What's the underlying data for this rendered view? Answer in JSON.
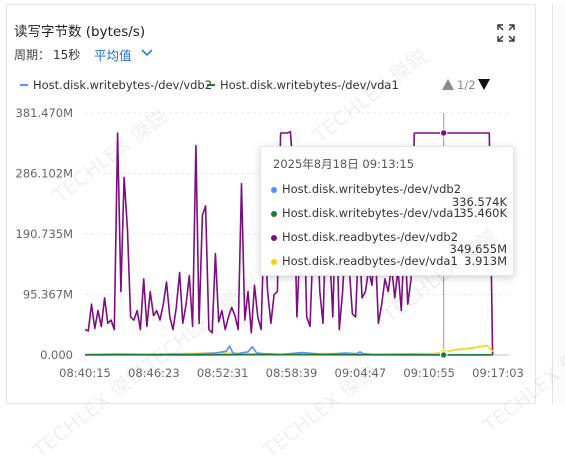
{
  "panel": {
    "title": "读写字节数 (bytes/s)",
    "period_label": "周期：",
    "period_value": "15秒",
    "aggregation_label": "平均值",
    "pager_text": "1/2"
  },
  "icons": {
    "expand": "expand-icon",
    "chevron": "chevron-down-icon",
    "pager_prev": "triangle-up-icon",
    "pager_next": "triangle-down-icon"
  },
  "legend": [
    {
      "name": "Host.disk.writebytes-/dev/vdb2",
      "color": "#5b8ff9"
    },
    {
      "name": "Host.disk.writebytes-/dev/vda1",
      "color": "#1e7a2e"
    }
  ],
  "tooltip": {
    "time": "2025年8月18日 09:13:15",
    "rows": [
      {
        "name": "Host.disk.writebytes-/dev/vdb2",
        "value": "336.574K",
        "color": "#5b8ff9"
      },
      {
        "name": "Host.disk.writebytes-/dev/vda1",
        "value": "35.460K",
        "color": "#1e7a2e"
      },
      {
        "name": "Host.disk.readbytes-/dev/vdb2",
        "value": "349.655M",
        "color": "#7b0f82"
      },
      {
        "name": "Host.disk.readbytes-/dev/vda1",
        "value": "3.913M",
        "color": "#f2d50c"
      }
    ]
  },
  "watermark": "TECHLEX 傑鋭",
  "chart_data": {
    "type": "line",
    "ytick_labels": [
      "0.000",
      "95.367M",
      "190.735M",
      "286.102M",
      "381.470M"
    ],
    "yticks": [
      0,
      95.367,
      190.735,
      286.102,
      381.47
    ],
    "ylim": [
      0,
      381.47
    ],
    "xtick_labels": [
      "08:40:15",
      "08:46:23",
      "08:52:31",
      "08:58:39",
      "09:04:47",
      "09:10:55",
      "09:17:03"
    ],
    "x_range_minutes": [
      0,
      38
    ],
    "cursor_x_minutes": 33,
    "series": [
      {
        "name": "Host.disk.readbytes-/dev/vdb2",
        "color": "#7b0f82",
        "x": [
          0.0,
          0.3,
          0.6,
          0.9,
          1.2,
          1.5,
          1.8,
          2.1,
          2.4,
          2.7,
          3.0,
          3.3,
          3.6,
          3.9,
          4.2,
          4.5,
          4.8,
          5.1,
          5.4,
          5.7,
          6.0,
          6.3,
          6.6,
          6.9,
          7.2,
          7.5,
          7.8,
          8.1,
          8.4,
          8.7,
          9.0,
          9.3,
          9.6,
          9.9,
          10.2,
          10.5,
          10.8,
          11.1,
          11.4,
          11.7,
          12.0,
          12.3,
          12.6,
          12.9,
          13.2,
          13.5,
          13.8,
          14.1,
          14.4,
          14.7,
          15.0,
          15.3,
          15.6,
          15.9,
          16.2,
          16.5,
          16.8,
          17.1,
          17.4,
          17.7,
          18.0,
          18.3,
          18.6,
          18.9,
          19.2,
          19.5,
          19.8,
          20.1,
          20.4,
          20.7,
          21.0,
          21.3,
          21.6,
          21.9,
          22.2,
          22.5,
          22.8,
          23.1,
          23.4,
          23.7,
          24.0,
          24.3,
          24.6,
          24.9,
          25.2,
          25.5,
          25.8,
          26.1,
          26.4,
          26.7,
          27.0,
          27.3,
          27.6,
          27.9,
          28.2,
          28.5,
          28.8,
          29.1,
          29.4,
          29.7,
          30.0,
          30.3,
          30.6,
          30.9,
          31.2,
          31.5,
          31.8,
          32.1,
          32.4,
          32.7,
          33.0,
          33.3,
          33.6,
          33.9,
          34.2,
          34.5,
          34.8,
          35.1,
          35.4,
          35.7,
          36.0,
          36.3,
          36.6,
          36.9,
          37.2,
          37.5
        ],
        "values": [
          40,
          38,
          80,
          42,
          70,
          45,
          90,
          50,
          55,
          40,
          350,
          100,
          280,
          200,
          60,
          55,
          70,
          40,
          120,
          45,
          100,
          62,
          70,
          55,
          80,
          115,
          60,
          40,
          75,
          130,
          50,
          80,
          125,
          45,
          330,
          50,
          220,
          235,
          40,
          35,
          160,
          52,
          70,
          40,
          60,
          75,
          62,
          40,
          270,
          55,
          100,
          35,
          110,
          60,
          40,
          210,
          100,
          50,
          95,
          100,
          350,
          350,
          350,
          352,
          280,
          60,
          180,
          265,
          60,
          45,
          180,
          240,
          100,
          50,
          230,
          170,
          60,
          250,
          40,
          100,
          190,
          140,
          65,
          60,
          190,
          90,
          100,
          135,
          110,
          170,
          50,
          80,
          120,
          100,
          140,
          90,
          135,
          70,
          190,
          80,
          120,
          350,
          350,
          350,
          350,
          350,
          350,
          350,
          350,
          350,
          350,
          350,
          350,
          350,
          350,
          350,
          350,
          350,
          350,
          350,
          350,
          350,
          350,
          350,
          350,
          0
        ]
      },
      {
        "name": "Host.disk.readbytes-/dev/vda1",
        "color": "#f2d50c",
        "x": [
          0,
          3,
          6,
          9,
          12,
          15,
          18,
          21,
          24,
          27,
          30,
          32,
          33,
          34,
          35,
          36,
          37,
          37.5,
          37.6
        ],
        "values": [
          1,
          2,
          1,
          2,
          3,
          2,
          1,
          2,
          2,
          1,
          2,
          2,
          4,
          8,
          10,
          12,
          15,
          6,
          6
        ]
      },
      {
        "name": "Host.disk.writebytes-/dev/vdb2",
        "color": "#5b8ff9",
        "x": [
          0,
          4,
          8,
          10,
          12,
          13,
          13.3,
          13.6,
          14,
          15,
          15.4,
          15.8,
          16.5,
          18,
          20,
          22,
          24,
          25,
          25.3,
          25.6,
          26.5,
          28,
          30,
          33,
          34,
          36,
          37.5
        ],
        "values": [
          0.5,
          1,
          1,
          1.5,
          3,
          6,
          14,
          3,
          2,
          5,
          13,
          3,
          2,
          1,
          4,
          1,
          3,
          2,
          5,
          2,
          1,
          1,
          1,
          0.3,
          0.5,
          0.5,
          0.3
        ]
      },
      {
        "name": "Host.disk.writebytes-/dev/vda1",
        "color": "#1e7a2e",
        "x": [
          0,
          5,
          10,
          15,
          20,
          25,
          30,
          33,
          36,
          37.5
        ],
        "values": [
          0.2,
          0.3,
          0.2,
          0.4,
          0.5,
          0.3,
          0.2,
          0.04,
          0.2,
          0.3
        ]
      }
    ]
  }
}
